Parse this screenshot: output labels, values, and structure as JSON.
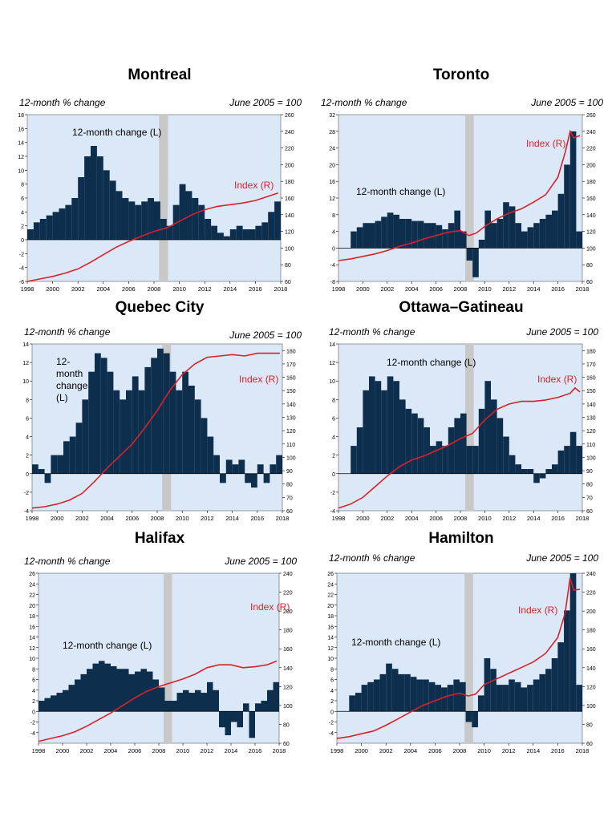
{
  "chart_data": [
    {
      "type": "bar+line",
      "title": "Montreal",
      "left_axis_label": "12-month % change",
      "right_axis_label": "June 2005 = 100",
      "bar_series_label": "12-month change (L)",
      "line_series_label": "Index (R)",
      "ylim_left": [
        -6,
        18
      ],
      "yticks_left": [
        -6,
        -4,
        -2,
        0,
        2,
        4,
        6,
        8,
        10,
        12,
        14,
        16,
        18
      ],
      "ylim_right": [
        60,
        260
      ],
      "yticks_right": [
        60,
        80,
        100,
        120,
        140,
        160,
        180,
        200,
        220,
        240,
        260
      ],
      "xlim": [
        1998,
        2018
      ],
      "xticks": [
        "1998",
        "2000",
        "2002",
        "2004",
        "2006",
        "2008",
        "2010",
        "2012",
        "2014",
        "2016",
        "2018"
      ],
      "recession": [
        2008.4,
        2009.1
      ],
      "bar_x": [
        1998.0,
        1998.5,
        1999.0,
        1999.5,
        2000.0,
        2000.5,
        2001.0,
        2001.5,
        2002.0,
        2002.5,
        2003.0,
        2003.5,
        2004.0,
        2004.5,
        2005.0,
        2005.5,
        2006.0,
        2006.5,
        2007.0,
        2007.5,
        2008.0,
        2008.5,
        2009.0,
        2009.5,
        2010.0,
        2010.5,
        2011.0,
        2011.5,
        2012.0,
        2012.5,
        2013.0,
        2013.5,
        2014.0,
        2014.5,
        2015.0,
        2015.5,
        2016.0,
        2016.5,
        2017.0,
        2017.5
      ],
      "bar_values": [
        1.5,
        2.5,
        3,
        3.5,
        4,
        4.5,
        5,
        6,
        9,
        12,
        13.5,
        12,
        10,
        8.5,
        7,
        6,
        5.5,
        5,
        5.5,
        6,
        5.5,
        3,
        2,
        5,
        8,
        7,
        6,
        5,
        3,
        2,
        1,
        0.5,
        1.5,
        2,
        1.5,
        1.5,
        2,
        2.5,
        4,
        5.5
      ],
      "line_x": [
        1998,
        1999,
        2000,
        2001,
        2002,
        2003,
        2004,
        2005,
        2006,
        2007,
        2008,
        2009,
        2010,
        2011,
        2012,
        2013,
        2014,
        2015,
        2016,
        2017,
        2017.8
      ],
      "line_values": [
        60,
        63,
        66,
        70,
        75,
        83,
        92,
        101,
        108,
        114,
        120,
        124,
        132,
        140,
        146,
        150,
        152,
        154,
        157,
        162,
        166
      ]
    },
    {
      "type": "bar+line",
      "title": "Toronto",
      "left_axis_label": "12-month % change",
      "right_axis_label": "June 2005 = 100",
      "bar_series_label": "12-month change (L)",
      "line_series_label": "Index (R)",
      "ylim_left": [
        -8,
        32
      ],
      "yticks_left": [
        -8,
        -4,
        0,
        4,
        8,
        12,
        16,
        20,
        24,
        28,
        32
      ],
      "ylim_right": [
        60,
        260
      ],
      "yticks_right": [
        60,
        80,
        100,
        120,
        140,
        160,
        180,
        200,
        220,
        240,
        260
      ],
      "xlim": [
        1998,
        2018
      ],
      "xticks": [
        "1998",
        "2000",
        "2002",
        "2004",
        "2006",
        "2008",
        "2010",
        "2012",
        "2014",
        "2016",
        "2018"
      ],
      "recession": [
        2008.4,
        2009.1
      ],
      "bar_x": [
        1999.0,
        1999.5,
        2000.0,
        2000.5,
        2001.0,
        2001.5,
        2002.0,
        2002.5,
        2003.0,
        2003.5,
        2004.0,
        2004.5,
        2005.0,
        2005.5,
        2006.0,
        2006.5,
        2007.0,
        2007.5,
        2008.0,
        2008.5,
        2009.0,
        2009.5,
        2010.0,
        2010.5,
        2011.0,
        2011.5,
        2012.0,
        2012.5,
        2013.0,
        2013.5,
        2014.0,
        2014.5,
        2015.0,
        2015.5,
        2016.0,
        2016.5,
        2017.0,
        2017.5
      ],
      "bar_values": [
        4,
        5,
        6,
        6,
        6.5,
        7.5,
        8.5,
        8,
        7,
        7,
        6.5,
        6.5,
        6,
        6,
        5.5,
        4.5,
        6,
        9,
        4,
        -3,
        -7,
        2,
        9,
        6,
        7,
        11,
        10,
        6,
        4,
        5,
        6,
        7,
        8,
        9,
        13,
        20,
        28,
        4
      ],
      "line_x": [
        1998,
        1999,
        2000,
        2001,
        2002,
        2003,
        2004,
        2005,
        2006,
        2007,
        2008,
        2008.7,
        2009.3,
        2010,
        2011,
        2012,
        2013,
        2014,
        2015,
        2016,
        2016.6,
        2017,
        2017.3,
        2017.8
      ],
      "line_values": [
        85,
        87,
        90,
        93,
        97,
        102,
        106,
        111,
        115,
        119,
        121,
        115,
        118,
        126,
        135,
        142,
        147,
        155,
        164,
        185,
        215,
        240,
        232,
        235
      ]
    },
    {
      "type": "bar+line",
      "title": "Quebec City",
      "left_axis_label": "12-month % change",
      "right_axis_label": "June 2005 = 100",
      "bar_series_label": "12-month change (L)",
      "line_series_label": "Index (R)",
      "ylim_left": [
        -4,
        14
      ],
      "yticks_left": [
        -4,
        -2,
        0,
        2,
        4,
        6,
        8,
        10,
        12,
        14
      ],
      "ylim_right": [
        60,
        185
      ],
      "yticks_right": [
        60,
        70,
        80,
        90,
        100,
        110,
        120,
        130,
        140,
        150,
        160,
        170,
        180
      ],
      "xlim": [
        1998,
        2018
      ],
      "xticks": [
        "1998",
        "2000",
        "2002",
        "2004",
        "2006",
        "2008",
        "2010",
        "2012",
        "2014",
        "2016",
        "2018"
      ],
      "recession": [
        2008.4,
        2009.1
      ],
      "bar_x": [
        1998.0,
        1998.5,
        1999.0,
        1999.5,
        2000.0,
        2000.5,
        2001.0,
        2001.5,
        2002.0,
        2002.5,
        2003.0,
        2003.5,
        2004.0,
        2004.5,
        2005.0,
        2005.5,
        2006.0,
        2006.5,
        2007.0,
        2007.5,
        2008.0,
        2008.5,
        2009.0,
        2009.5,
        2010.0,
        2010.5,
        2011.0,
        2011.5,
        2012.0,
        2012.5,
        2013.0,
        2013.5,
        2014.0,
        2014.5,
        2015.0,
        2015.5,
        2016.0,
        2016.5,
        2017.0,
        2017.5
      ],
      "bar_values": [
        1,
        0.5,
        -1,
        2,
        2,
        3.5,
        4,
        5.5,
        8,
        11,
        13,
        12.5,
        11,
        9,
        8,
        9,
        10.5,
        9,
        11.5,
        12.5,
        13.5,
        13,
        11,
        9,
        11,
        9.5,
        8,
        6,
        4,
        2,
        -1,
        1.5,
        1,
        1.5,
        -1,
        -1.5,
        1,
        -1,
        1,
        2
      ],
      "line_x": [
        1998,
        1999,
        2000,
        2001,
        2002,
        2003,
        2004,
        2005,
        2006,
        2007,
        2008,
        2009,
        2010,
        2011,
        2012,
        2013,
        2014,
        2015,
        2016,
        2017,
        2017.8
      ],
      "line_values": [
        62,
        63,
        65,
        68,
        73,
        82,
        92,
        101,
        110,
        122,
        135,
        150,
        162,
        170,
        175,
        176,
        177,
        176,
        178,
        178,
        178
      ]
    },
    {
      "type": "bar+line",
      "title": "Ottawa–Gatineau",
      "left_axis_label": "12-month % change",
      "right_axis_label": "June 2005 = 100",
      "bar_series_label": "12-month change (L)",
      "line_series_label": "Index (R)",
      "ylim_left": [
        -4,
        14
      ],
      "yticks_left": [
        -4,
        -2,
        0,
        2,
        4,
        6,
        8,
        10,
        12,
        14
      ],
      "ylim_right": [
        60,
        185
      ],
      "yticks_right": [
        60,
        70,
        80,
        90,
        100,
        110,
        120,
        130,
        140,
        150,
        160,
        170,
        180
      ],
      "xlim": [
        1998,
        2018
      ],
      "xticks": [
        "1998",
        "2000",
        "2002",
        "2004",
        "2006",
        "2008",
        "2010",
        "2012",
        "2014",
        "2016",
        "2018"
      ],
      "recession": [
        2008.4,
        2009.1
      ],
      "bar_x": [
        1999.0,
        1999.5,
        2000.0,
        2000.5,
        2001.0,
        2001.5,
        2002.0,
        2002.5,
        2003.0,
        2003.5,
        2004.0,
        2004.5,
        2005.0,
        2005.5,
        2006.0,
        2006.5,
        2007.0,
        2007.5,
        2008.0,
        2008.5,
        2009.0,
        2009.5,
        2010.0,
        2010.5,
        2011.0,
        2011.5,
        2012.0,
        2012.5,
        2013.0,
        2013.5,
        2014.0,
        2014.5,
        2015.0,
        2015.5,
        2016.0,
        2016.5,
        2017.0,
        2017.5
      ],
      "bar_values": [
        3,
        5,
        9,
        10.5,
        10,
        9,
        10.5,
        10,
        8,
        7,
        6.5,
        6,
        5,
        3,
        3.5,
        3,
        5,
        6,
        6.5,
        3,
        3,
        7,
        10,
        8,
        6,
        4,
        2,
        1,
        0.5,
        0.5,
        -1,
        -0.5,
        0.5,
        1,
        2.5,
        3,
        4.5,
        3
      ],
      "line_x": [
        1998,
        1999,
        2000,
        2001,
        2002,
        2003,
        2004,
        2005,
        2006,
        2007,
        2008,
        2009,
        2010,
        2011,
        2012,
        2013,
        2014,
        2015,
        2016,
        2017,
        2017.4,
        2017.8
      ],
      "line_values": [
        62,
        65,
        70,
        78,
        86,
        93,
        98,
        101,
        105,
        109,
        114,
        118,
        128,
        136,
        140,
        142,
        142,
        143,
        145,
        148,
        152,
        149
      ]
    },
    {
      "type": "bar+line",
      "title": "Halifax",
      "left_axis_label": "12-month % change",
      "right_axis_label": "June 2005 = 100",
      "bar_series_label": "12-month change (L)",
      "line_series_label": "Index (R)",
      "ylim_left": [
        -6,
        26
      ],
      "yticks_left": [
        -4,
        -2,
        0,
        2,
        4,
        6,
        8,
        10,
        12,
        14,
        16,
        18,
        20,
        22,
        24,
        26
      ],
      "ylim_right": [
        60,
        240
      ],
      "yticks_right": [
        60,
        80,
        100,
        120,
        140,
        160,
        180,
        200,
        220,
        240
      ],
      "xlim": [
        1998,
        2018
      ],
      "xticks": [
        "1998",
        "2000",
        "2002",
        "2004",
        "2006",
        "2008",
        "2010",
        "2012",
        "2014",
        "2016",
        "2018"
      ],
      "recession": [
        2008.4,
        2009.1
      ],
      "bar_x": [
        1998.0,
        1998.5,
        1999.0,
        1999.5,
        2000.0,
        2000.5,
        2001.0,
        2001.5,
        2002.0,
        2002.5,
        2003.0,
        2003.5,
        2004.0,
        2004.5,
        2005.0,
        2005.5,
        2006.0,
        2006.5,
        2007.0,
        2007.5,
        2008.0,
        2008.5,
        2009.0,
        2009.5,
        2010.0,
        2010.5,
        2011.0,
        2011.5,
        2012.0,
        2012.5,
        2013.0,
        2013.5,
        2014.0,
        2014.5,
        2015.0,
        2015.5,
        2016.0,
        2016.5,
        2017.0,
        2017.5
      ],
      "bar_values": [
        2,
        2.5,
        3,
        3.5,
        4,
        5,
        6,
        7,
        8,
        9,
        9.5,
        9,
        8.5,
        8,
        8,
        7,
        7.5,
        8,
        7.5,
        6,
        4.5,
        2,
        2,
        3.5,
        4,
        3.5,
        4,
        3.5,
        5.5,
        4,
        -3,
        -4.5,
        -2,
        -3,
        1.5,
        -5,
        1.5,
        2,
        4,
        5.5
      ],
      "line_x": [
        1998,
        1999,
        2000,
        2001,
        2002,
        2003,
        2004,
        2005,
        2006,
        2007,
        2008,
        2009,
        2010,
        2011,
        2012,
        2013,
        2014,
        2015,
        2016,
        2017,
        2017.8
      ],
      "line_values": [
        62,
        65,
        68,
        72,
        78,
        85,
        92,
        100,
        108,
        115,
        120,
        124,
        128,
        133,
        140,
        143,
        143,
        140,
        141,
        143,
        147
      ]
    },
    {
      "type": "bar+line",
      "title": "Hamilton",
      "left_axis_label": "12-month % change",
      "right_axis_label": "June 2005 = 100",
      "bar_series_label": "12-month change (L)",
      "line_series_label": "Index (R)",
      "ylim_left": [
        -6,
        26
      ],
      "yticks_left": [
        -4,
        -2,
        0,
        2,
        4,
        6,
        8,
        10,
        12,
        14,
        16,
        18,
        20,
        22,
        24,
        26
      ],
      "ylim_right": [
        60,
        240
      ],
      "yticks_right": [
        60,
        80,
        100,
        120,
        140,
        160,
        180,
        200,
        220,
        240
      ],
      "xlim": [
        1998,
        2018
      ],
      "xticks": [
        "1998",
        "2000",
        "2002",
        "2004",
        "2006",
        "2008",
        "2010",
        "2012",
        "2014",
        "2016",
        "2018"
      ],
      "recession": [
        2008.4,
        2009.1
      ],
      "bar_x": [
        1999.0,
        1999.5,
        2000.0,
        2000.5,
        2001.0,
        2001.5,
        2002.0,
        2002.5,
        2003.0,
        2003.5,
        2004.0,
        2004.5,
        2005.0,
        2005.5,
        2006.0,
        2006.5,
        2007.0,
        2007.5,
        2008.0,
        2008.5,
        2009.0,
        2009.5,
        2010.0,
        2010.5,
        2011.0,
        2011.5,
        2012.0,
        2012.5,
        2013.0,
        2013.5,
        2014.0,
        2014.5,
        2015.0,
        2015.5,
        2016.0,
        2016.5,
        2017.0,
        2017.5
      ],
      "bar_values": [
        3,
        3.5,
        5,
        5.5,
        6,
        7,
        9,
        8,
        7,
        7,
        6.5,
        6,
        6,
        5.5,
        5,
        4.5,
        5,
        6,
        5.5,
        -2,
        -3,
        3,
        10,
        8,
        5,
        5,
        6,
        5.5,
        4.5,
        5,
        6,
        7,
        8,
        10,
        13,
        19,
        26,
        5
      ],
      "line_x": [
        1998,
        1999,
        2000,
        2001,
        2002,
        2003,
        2004,
        2005,
        2006,
        2007,
        2008,
        2008.7,
        2009.3,
        2010,
        2011,
        2012,
        2013,
        2014,
        2015,
        2016,
        2016.6,
        2017,
        2017.3,
        2017.8
      ],
      "line_values": [
        65,
        67,
        70,
        73,
        79,
        86,
        93,
        100,
        105,
        110,
        113,
        110,
        112,
        122,
        128,
        134,
        140,
        146,
        155,
        172,
        198,
        235,
        222,
        223
      ]
    }
  ]
}
